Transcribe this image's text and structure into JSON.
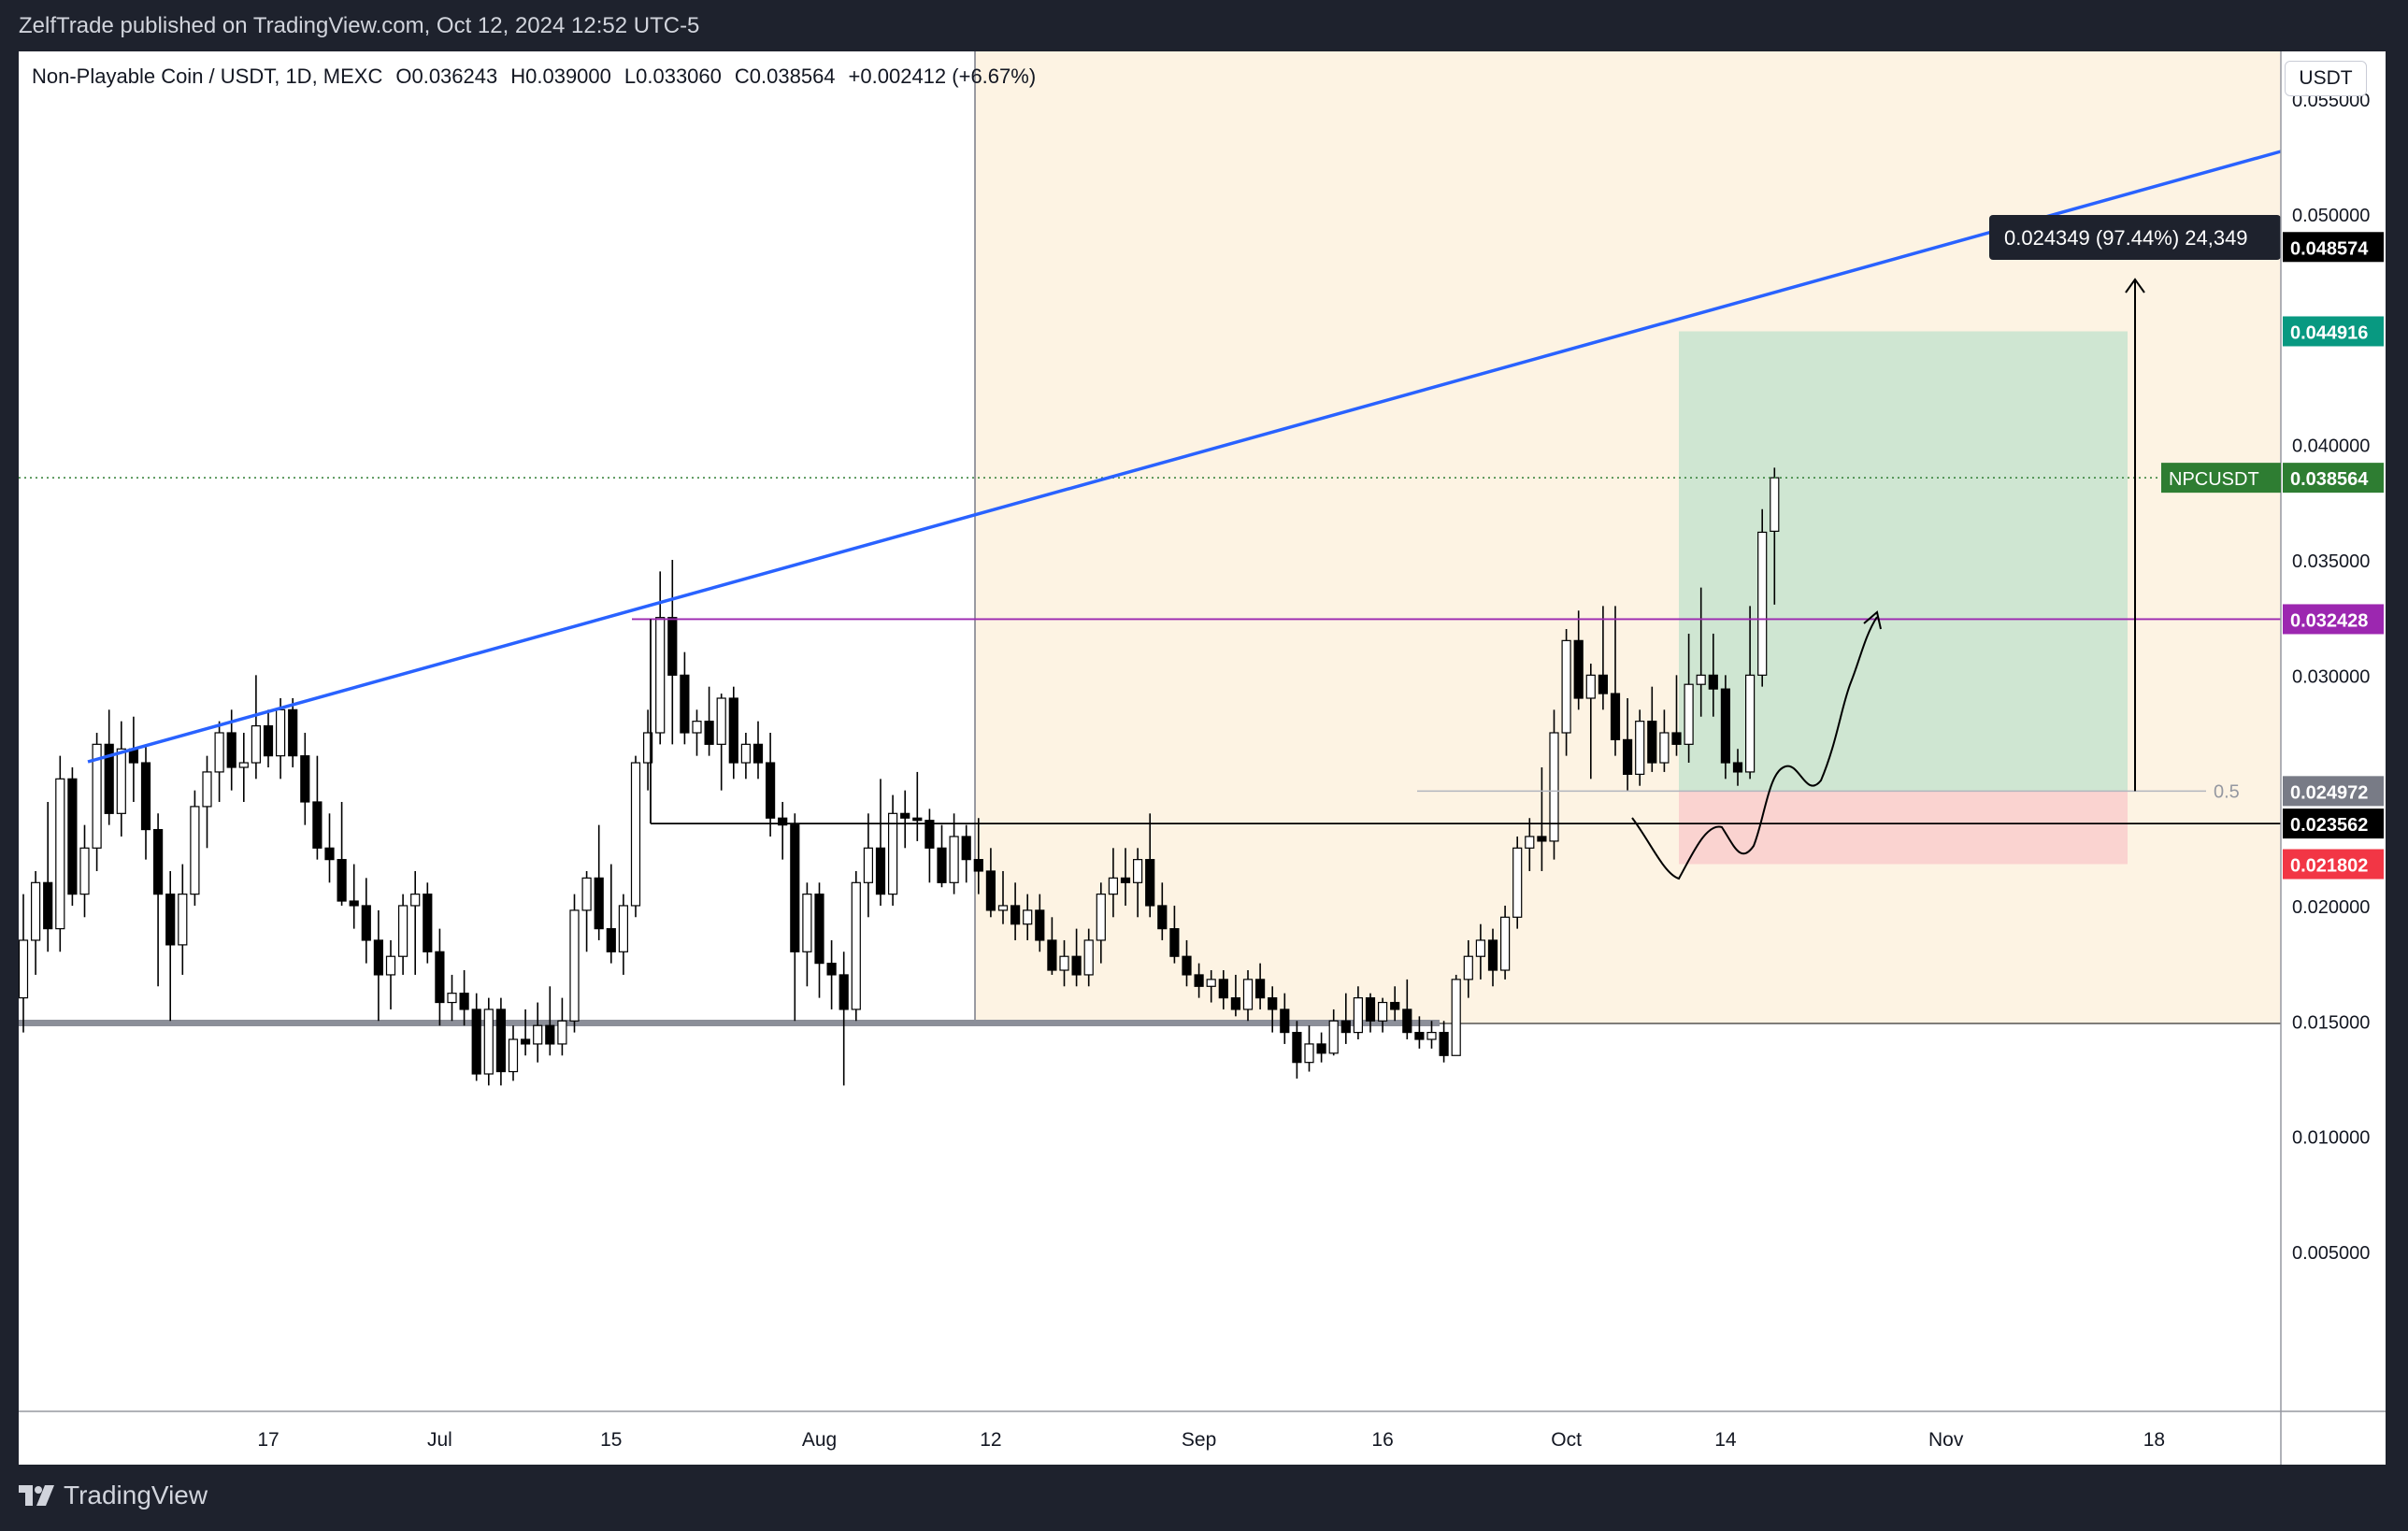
{
  "publisher_line": "ZelfTrade published on TradingView.com, Oct 12, 2024 12:52 UTC-5",
  "brand": "TradingView",
  "legend": {
    "symbol": "Non-Playable Coin / USDT, 1D, MEXC",
    "open": "O0.036243",
    "high": "H0.039000",
    "low": "L0.033060",
    "close": "C0.038564",
    "change": "+0.002412 (+6.67%)"
  },
  "currency": "USDT",
  "colors": {
    "up": "#ffffff",
    "down": "#000000",
    "trendline": "#2962ff",
    "resistance": "#9c27b0",
    "profit_zone": "#cfe6d2",
    "loss_zone": "#fad3d0",
    "highlight_zone": "#fdf3e3",
    "last_price": "#2e7d32",
    "target_label": "#089981",
    "stop_label": "#f23645"
  },
  "measure_label": "0.024349 (97.44%) 24,349",
  "fib_label": "0.5",
  "price_labels": {
    "last": {
      "name": "NPCUSDT",
      "value": "0.038564",
      "price": 0.038564
    },
    "upper_black": {
      "value": "0.048574",
      "price": 0.048574
    },
    "target": {
      "value": "0.044916",
      "price": 0.044916
    },
    "resistance": {
      "value": "0.032428",
      "price": 0.032428
    },
    "entry": {
      "value": "0.024972",
      "price": 0.024972
    },
    "support": {
      "value": "0.023562",
      "price": 0.023562
    },
    "stop": {
      "value": "0.021802",
      "price": 0.021802
    }
  },
  "chart_data": {
    "type": "candlestick",
    "symbol": "NPCUSDT",
    "timeframe": "1D",
    "exchange": "MEXC",
    "ylim": [
      0,
      0.058
    ],
    "y_ticks": [
      "0.055000",
      "0.050000",
      "0.040000",
      "0.035000",
      "0.030000",
      "0.020000",
      "0.015000",
      "0.010000",
      "0.005000"
    ],
    "x_ticks": [
      "17",
      "Jul",
      "15",
      "Aug",
      "12",
      "Sep",
      "16",
      "Oct",
      "14",
      "Nov",
      "18"
    ],
    "x_tick_index": [
      20,
      34,
      48,
      65,
      79,
      96,
      111,
      126,
      139,
      157,
      174
    ],
    "candles": [
      {
        "o": 0.016,
        "h": 0.0205,
        "l": 0.0145,
        "c": 0.0185
      },
      {
        "o": 0.0185,
        "h": 0.0215,
        "l": 0.017,
        "c": 0.021
      },
      {
        "o": 0.021,
        "h": 0.0245,
        "l": 0.018,
        "c": 0.019
      },
      {
        "o": 0.019,
        "h": 0.0265,
        "l": 0.018,
        "c": 0.0255
      },
      {
        "o": 0.0255,
        "h": 0.026,
        "l": 0.02,
        "c": 0.0205
      },
      {
        "o": 0.0205,
        "h": 0.0235,
        "l": 0.0195,
        "c": 0.0225
      },
      {
        "o": 0.0225,
        "h": 0.0275,
        "l": 0.0215,
        "c": 0.027
      },
      {
        "o": 0.027,
        "h": 0.0285,
        "l": 0.0235,
        "c": 0.024
      },
      {
        "o": 0.024,
        "h": 0.028,
        "l": 0.023,
        "c": 0.0268
      },
      {
        "o": 0.0268,
        "h": 0.0282,
        "l": 0.0245,
        "c": 0.0262
      },
      {
        "o": 0.0262,
        "h": 0.027,
        "l": 0.022,
        "c": 0.0233
      },
      {
        "o": 0.0233,
        "h": 0.024,
        "l": 0.0165,
        "c": 0.0205
      },
      {
        "o": 0.0205,
        "h": 0.0215,
        "l": 0.015,
        "c": 0.0183
      },
      {
        "o": 0.0183,
        "h": 0.0218,
        "l": 0.017,
        "c": 0.0205
      },
      {
        "o": 0.0205,
        "h": 0.025,
        "l": 0.02,
        "c": 0.0243
      },
      {
        "o": 0.0243,
        "h": 0.0265,
        "l": 0.0225,
        "c": 0.0258
      },
      {
        "o": 0.0258,
        "h": 0.028,
        "l": 0.0245,
        "c": 0.0275
      },
      {
        "o": 0.0275,
        "h": 0.0285,
        "l": 0.025,
        "c": 0.026
      },
      {
        "o": 0.026,
        "h": 0.0275,
        "l": 0.0245,
        "c": 0.0262
      },
      {
        "o": 0.0262,
        "h": 0.03,
        "l": 0.0255,
        "c": 0.0278
      },
      {
        "o": 0.0278,
        "h": 0.0285,
        "l": 0.026,
        "c": 0.0265
      },
      {
        "o": 0.0265,
        "h": 0.029,
        "l": 0.0255,
        "c": 0.0285
      },
      {
        "o": 0.0285,
        "h": 0.029,
        "l": 0.026,
        "c": 0.0265
      },
      {
        "o": 0.0265,
        "h": 0.0275,
        "l": 0.0235,
        "c": 0.0245
      },
      {
        "o": 0.0245,
        "h": 0.0265,
        "l": 0.022,
        "c": 0.0225
      },
      {
        "o": 0.0225,
        "h": 0.024,
        "l": 0.021,
        "c": 0.022
      },
      {
        "o": 0.022,
        "h": 0.0245,
        "l": 0.02,
        "c": 0.0202
      },
      {
        "o": 0.0202,
        "h": 0.0218,
        "l": 0.019,
        "c": 0.02
      },
      {
        "o": 0.02,
        "h": 0.0212,
        "l": 0.0175,
        "c": 0.0185
      },
      {
        "o": 0.0185,
        "h": 0.0198,
        "l": 0.015,
        "c": 0.017
      },
      {
        "o": 0.017,
        "h": 0.0185,
        "l": 0.0155,
        "c": 0.0178
      },
      {
        "o": 0.0178,
        "h": 0.0205,
        "l": 0.017,
        "c": 0.02
      },
      {
        "o": 0.02,
        "h": 0.0215,
        "l": 0.017,
        "c": 0.0205
      },
      {
        "o": 0.0205,
        "h": 0.021,
        "l": 0.0175,
        "c": 0.018
      },
      {
        "o": 0.018,
        "h": 0.019,
        "l": 0.0148,
        "c": 0.0158
      },
      {
        "o": 0.0158,
        "h": 0.017,
        "l": 0.015,
        "c": 0.0162
      },
      {
        "o": 0.0162,
        "h": 0.0172,
        "l": 0.0148,
        "c": 0.0155
      },
      {
        "o": 0.0155,
        "h": 0.0162,
        "l": 0.0124,
        "c": 0.0127
      },
      {
        "o": 0.0127,
        "h": 0.016,
        "l": 0.0122,
        "c": 0.0155
      },
      {
        "o": 0.0155,
        "h": 0.016,
        "l": 0.0122,
        "c": 0.0128
      },
      {
        "o": 0.0128,
        "h": 0.0148,
        "l": 0.0124,
        "c": 0.0142
      },
      {
        "o": 0.0142,
        "h": 0.0155,
        "l": 0.0135,
        "c": 0.014
      },
      {
        "o": 0.014,
        "h": 0.0158,
        "l": 0.0132,
        "c": 0.0148
      },
      {
        "o": 0.0148,
        "h": 0.0165,
        "l": 0.0135,
        "c": 0.014
      },
      {
        "o": 0.014,
        "h": 0.016,
        "l": 0.0135,
        "c": 0.015
      },
      {
        "o": 0.015,
        "h": 0.0205,
        "l": 0.0145,
        "c": 0.0198
      },
      {
        "o": 0.0198,
        "h": 0.0215,
        "l": 0.018,
        "c": 0.0212
      },
      {
        "o": 0.0212,
        "h": 0.0235,
        "l": 0.0185,
        "c": 0.019
      },
      {
        "o": 0.019,
        "h": 0.0218,
        "l": 0.0175,
        "c": 0.018
      },
      {
        "o": 0.018,
        "h": 0.0205,
        "l": 0.017,
        "c": 0.02
      },
      {
        "o": 0.02,
        "h": 0.0265,
        "l": 0.0195,
        "c": 0.0262
      },
      {
        "o": 0.0262,
        "h": 0.0285,
        "l": 0.025,
        "c": 0.0275
      },
      {
        "o": 0.0275,
        "h": 0.0345,
        "l": 0.027,
        "c": 0.0325
      },
      {
        "o": 0.0325,
        "h": 0.035,
        "l": 0.027,
        "c": 0.03
      },
      {
        "o": 0.03,
        "h": 0.031,
        "l": 0.027,
        "c": 0.0275
      },
      {
        "o": 0.0275,
        "h": 0.0285,
        "l": 0.0265,
        "c": 0.028
      },
      {
        "o": 0.028,
        "h": 0.0295,
        "l": 0.0265,
        "c": 0.027
      },
      {
        "o": 0.027,
        "h": 0.0292,
        "l": 0.025,
        "c": 0.029
      },
      {
        "o": 0.029,
        "h": 0.0295,
        "l": 0.0255,
        "c": 0.0262
      },
      {
        "o": 0.0262,
        "h": 0.0275,
        "l": 0.0255,
        "c": 0.027
      },
      {
        "o": 0.027,
        "h": 0.028,
        "l": 0.0255,
        "c": 0.0262
      },
      {
        "o": 0.0262,
        "h": 0.0275,
        "l": 0.023,
        "c": 0.0238
      },
      {
        "o": 0.0238,
        "h": 0.0245,
        "l": 0.022,
        "c": 0.0235
      },
      {
        "o": 0.0235,
        "h": 0.024,
        "l": 0.015,
        "c": 0.018
      },
      {
        "o": 0.018,
        "h": 0.021,
        "l": 0.0165,
        "c": 0.0205
      },
      {
        "o": 0.0205,
        "h": 0.021,
        "l": 0.016,
        "c": 0.0175
      },
      {
        "o": 0.0175,
        "h": 0.0185,
        "l": 0.0155,
        "c": 0.017
      },
      {
        "o": 0.017,
        "h": 0.018,
        "l": 0.0122,
        "c": 0.0155
      },
      {
        "o": 0.0155,
        "h": 0.0215,
        "l": 0.015,
        "c": 0.021
      },
      {
        "o": 0.021,
        "h": 0.024,
        "l": 0.0195,
        "c": 0.0225
      },
      {
        "o": 0.0225,
        "h": 0.0255,
        "l": 0.02,
        "c": 0.0205
      },
      {
        "o": 0.0205,
        "h": 0.0248,
        "l": 0.02,
        "c": 0.024
      },
      {
        "o": 0.024,
        "h": 0.025,
        "l": 0.0225,
        "c": 0.0238
      },
      {
        "o": 0.0238,
        "h": 0.0258,
        "l": 0.0228,
        "c": 0.0237
      },
      {
        "o": 0.0237,
        "h": 0.0242,
        "l": 0.021,
        "c": 0.0225
      },
      {
        "o": 0.0225,
        "h": 0.0235,
        "l": 0.0208,
        "c": 0.021
      },
      {
        "o": 0.021,
        "h": 0.024,
        "l": 0.0205,
        "c": 0.023
      },
      {
        "o": 0.023,
        "h": 0.0235,
        "l": 0.021,
        "c": 0.022
      },
      {
        "o": 0.022,
        "h": 0.0238,
        "l": 0.0205,
        "c": 0.0215
      },
      {
        "o": 0.0215,
        "h": 0.0225,
        "l": 0.0195,
        "c": 0.0198
      },
      {
        "o": 0.0198,
        "h": 0.0215,
        "l": 0.0192,
        "c": 0.02
      },
      {
        "o": 0.02,
        "h": 0.021,
        "l": 0.0185,
        "c": 0.0192
      },
      {
        "o": 0.0192,
        "h": 0.0205,
        "l": 0.0185,
        "c": 0.0198
      },
      {
        "o": 0.0198,
        "h": 0.0205,
        "l": 0.018,
        "c": 0.0185
      },
      {
        "o": 0.0185,
        "h": 0.0195,
        "l": 0.017,
        "c": 0.0172
      },
      {
        "o": 0.0172,
        "h": 0.0185,
        "l": 0.0165,
        "c": 0.0178
      },
      {
        "o": 0.0178,
        "h": 0.019,
        "l": 0.0165,
        "c": 0.017
      },
      {
        "o": 0.017,
        "h": 0.019,
        "l": 0.0165,
        "c": 0.0185
      },
      {
        "o": 0.0185,
        "h": 0.021,
        "l": 0.0175,
        "c": 0.0205
      },
      {
        "o": 0.0205,
        "h": 0.0225,
        "l": 0.0195,
        "c": 0.0212
      },
      {
        "o": 0.0212,
        "h": 0.0225,
        "l": 0.02,
        "c": 0.021
      },
      {
        "o": 0.021,
        "h": 0.0225,
        "l": 0.0195,
        "c": 0.022
      },
      {
        "o": 0.022,
        "h": 0.024,
        "l": 0.0195,
        "c": 0.02
      },
      {
        "o": 0.02,
        "h": 0.021,
        "l": 0.0185,
        "c": 0.019
      },
      {
        "o": 0.019,
        "h": 0.02,
        "l": 0.0175,
        "c": 0.0178
      },
      {
        "o": 0.0178,
        "h": 0.0185,
        "l": 0.0165,
        "c": 0.017
      },
      {
        "o": 0.017,
        "h": 0.0175,
        "l": 0.016,
        "c": 0.0165
      },
      {
        "o": 0.0165,
        "h": 0.0172,
        "l": 0.0158,
        "c": 0.0168
      },
      {
        "o": 0.0168,
        "h": 0.0172,
        "l": 0.0155,
        "c": 0.016
      },
      {
        "o": 0.016,
        "h": 0.017,
        "l": 0.0152,
        "c": 0.0155
      },
      {
        "o": 0.0155,
        "h": 0.0172,
        "l": 0.015,
        "c": 0.0168
      },
      {
        "o": 0.0168,
        "h": 0.0175,
        "l": 0.0155,
        "c": 0.016
      },
      {
        "o": 0.016,
        "h": 0.0165,
        "l": 0.0145,
        "c": 0.0155
      },
      {
        "o": 0.0155,
        "h": 0.0162,
        "l": 0.014,
        "c": 0.0145
      },
      {
        "o": 0.0145,
        "h": 0.015,
        "l": 0.0125,
        "c": 0.0132
      },
      {
        "o": 0.0132,
        "h": 0.0148,
        "l": 0.0128,
        "c": 0.014
      },
      {
        "o": 0.014,
        "h": 0.0145,
        "l": 0.0132,
        "c": 0.0136
      },
      {
        "o": 0.0136,
        "h": 0.0155,
        "l": 0.0135,
        "c": 0.015
      },
      {
        "o": 0.015,
        "h": 0.0162,
        "l": 0.014,
        "c": 0.0145
      },
      {
        "o": 0.0145,
        "h": 0.0165,
        "l": 0.0142,
        "c": 0.016
      },
      {
        "o": 0.016,
        "h": 0.0162,
        "l": 0.0145,
        "c": 0.015
      },
      {
        "o": 0.015,
        "h": 0.016,
        "l": 0.0145,
        "c": 0.0158
      },
      {
        "o": 0.0158,
        "h": 0.0165,
        "l": 0.015,
        "c": 0.0155
      },
      {
        "o": 0.0155,
        "h": 0.0168,
        "l": 0.0142,
        "c": 0.0145
      },
      {
        "o": 0.0145,
        "h": 0.0152,
        "l": 0.0138,
        "c": 0.0142
      },
      {
        "o": 0.0142,
        "h": 0.015,
        "l": 0.0138,
        "c": 0.0145
      },
      {
        "o": 0.0145,
        "h": 0.015,
        "l": 0.0132,
        "c": 0.0135
      },
      {
        "o": 0.0135,
        "h": 0.017,
        "l": 0.0135,
        "c": 0.0168
      },
      {
        "o": 0.0168,
        "h": 0.0185,
        "l": 0.016,
        "c": 0.0178
      },
      {
        "o": 0.0178,
        "h": 0.0192,
        "l": 0.0168,
        "c": 0.0185
      },
      {
        "o": 0.0185,
        "h": 0.019,
        "l": 0.0165,
        "c": 0.0172
      },
      {
        "o": 0.0172,
        "h": 0.02,
        "l": 0.0168,
        "c": 0.0195
      },
      {
        "o": 0.0195,
        "h": 0.023,
        "l": 0.019,
        "c": 0.0225
      },
      {
        "o": 0.0225,
        "h": 0.0238,
        "l": 0.0215,
        "c": 0.023
      },
      {
        "o": 0.023,
        "h": 0.026,
        "l": 0.0215,
        "c": 0.0228
      },
      {
        "o": 0.0228,
        "h": 0.0285,
        "l": 0.022,
        "c": 0.0275
      },
      {
        "o": 0.0275,
        "h": 0.032,
        "l": 0.0265,
        "c": 0.0315
      },
      {
        "o": 0.0315,
        "h": 0.0328,
        "l": 0.0285,
        "c": 0.029
      },
      {
        "o": 0.029,
        "h": 0.0305,
        "l": 0.0255,
        "c": 0.03
      },
      {
        "o": 0.03,
        "h": 0.033,
        "l": 0.0285,
        "c": 0.0292
      },
      {
        "o": 0.0292,
        "h": 0.033,
        "l": 0.0265,
        "c": 0.0272
      },
      {
        "o": 0.0272,
        "h": 0.029,
        "l": 0.025,
        "c": 0.0257
      },
      {
        "o": 0.0257,
        "h": 0.0285,
        "l": 0.0252,
        "c": 0.028
      },
      {
        "o": 0.028,
        "h": 0.0295,
        "l": 0.0258,
        "c": 0.0262
      },
      {
        "o": 0.0262,
        "h": 0.0285,
        "l": 0.0258,
        "c": 0.0275
      },
      {
        "o": 0.0275,
        "h": 0.03,
        "l": 0.0265,
        "c": 0.027
      },
      {
        "o": 0.027,
        "h": 0.0318,
        "l": 0.0262,
        "c": 0.0296
      },
      {
        "o": 0.0296,
        "h": 0.0338,
        "l": 0.0282,
        "c": 0.03
      },
      {
        "o": 0.03,
        "h": 0.0318,
        "l": 0.0282,
        "c": 0.0294
      },
      {
        "o": 0.0294,
        "h": 0.03,
        "l": 0.0255,
        "c": 0.0262
      },
      {
        "o": 0.0262,
        "h": 0.0268,
        "l": 0.0252,
        "c": 0.0258
      },
      {
        "o": 0.0258,
        "h": 0.033,
        "l": 0.0255,
        "c": 0.03
      },
      {
        "o": 0.03,
        "h": 0.0372,
        "l": 0.0295,
        "c": 0.0362
      },
      {
        "o": 0.036243,
        "h": 0.039,
        "l": 0.03306,
        "c": 0.038564
      }
    ]
  }
}
